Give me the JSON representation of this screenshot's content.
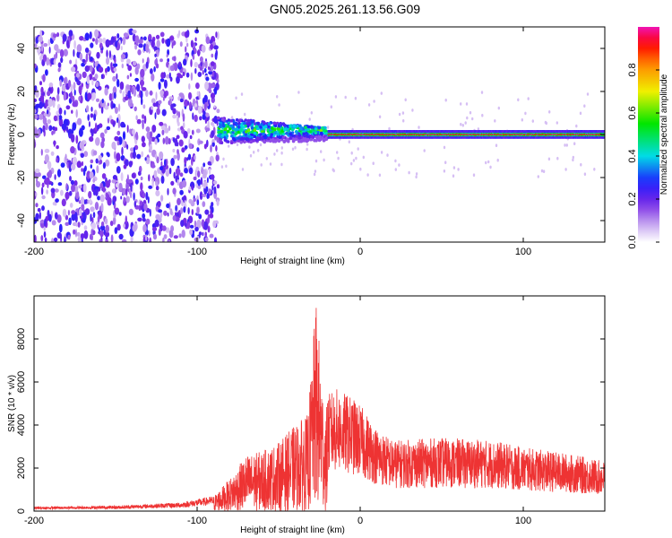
{
  "title": "GN05.2025.261.13.56.G09",
  "chart_data": [
    {
      "type": "heatmap",
      "xlabel": "Height of straight line (km)",
      "ylabel": "Frequency (Hz)",
      "xlim": [
        -200,
        150
      ],
      "ylim": [
        -50,
        50
      ],
      "x_ticks": [
        -200,
        -100,
        0,
        100
      ],
      "y_ticks": [
        -40,
        -20,
        0,
        20,
        40
      ],
      "colorbar": {
        "label": "Normalized spectral amplitude",
        "range": [
          0.0,
          1.0
        ],
        "ticks": [
          0.0,
          0.2,
          0.4,
          0.6,
          0.8
        ]
      },
      "regions": [
        {
          "x_range": [
            -200,
            -87
          ],
          "y_range": [
            -50,
            48
          ],
          "description_value": 0.15
        },
        {
          "x_range": [
            -87,
            -20
          ],
          "center_freq": 2,
          "halfwidth": 6,
          "peak_value": 0.6
        },
        {
          "x_range": [
            -20,
            150
          ],
          "center_freq": 0,
          "halfwidth": 2,
          "peak_value": 1.0
        }
      ]
    },
    {
      "type": "line",
      "xlabel": "Height of straight line (km)",
      "ylabel": "SNR (10 * v/v)",
      "xlim": [
        -200,
        150
      ],
      "ylim": [
        0,
        10000
      ],
      "x_ticks": [
        -200,
        -100,
        0,
        100
      ],
      "y_ticks": [
        0,
        2000,
        4000,
        6000,
        8000
      ],
      "series_color": "#ee3333",
      "envelope": [
        {
          "x": -200,
          "y": 200
        },
        {
          "x": -150,
          "y": 250
        },
        {
          "x": -110,
          "y": 400
        },
        {
          "x": -90,
          "y": 700
        },
        {
          "x": -80,
          "y": 1500
        },
        {
          "x": -70,
          "y": 2600
        },
        {
          "x": -60,
          "y": 2800
        },
        {
          "x": -50,
          "y": 3200
        },
        {
          "x": -40,
          "y": 4000
        },
        {
          "x": -32,
          "y": 4500
        },
        {
          "x": -27,
          "y": 9800
        },
        {
          "x": -22,
          "y": 4800
        },
        {
          "x": -15,
          "y": 5200
        },
        {
          "x": -10,
          "y": 5000
        },
        {
          "x": -5,
          "y": 4800
        },
        {
          "x": 0,
          "y": 4500
        },
        {
          "x": 10,
          "y": 3500
        },
        {
          "x": 20,
          "y": 3000
        },
        {
          "x": 50,
          "y": 3100
        },
        {
          "x": 80,
          "y": 3000
        },
        {
          "x": 100,
          "y": 2700
        },
        {
          "x": 130,
          "y": 2400
        },
        {
          "x": 150,
          "y": 2100
        }
      ]
    }
  ]
}
